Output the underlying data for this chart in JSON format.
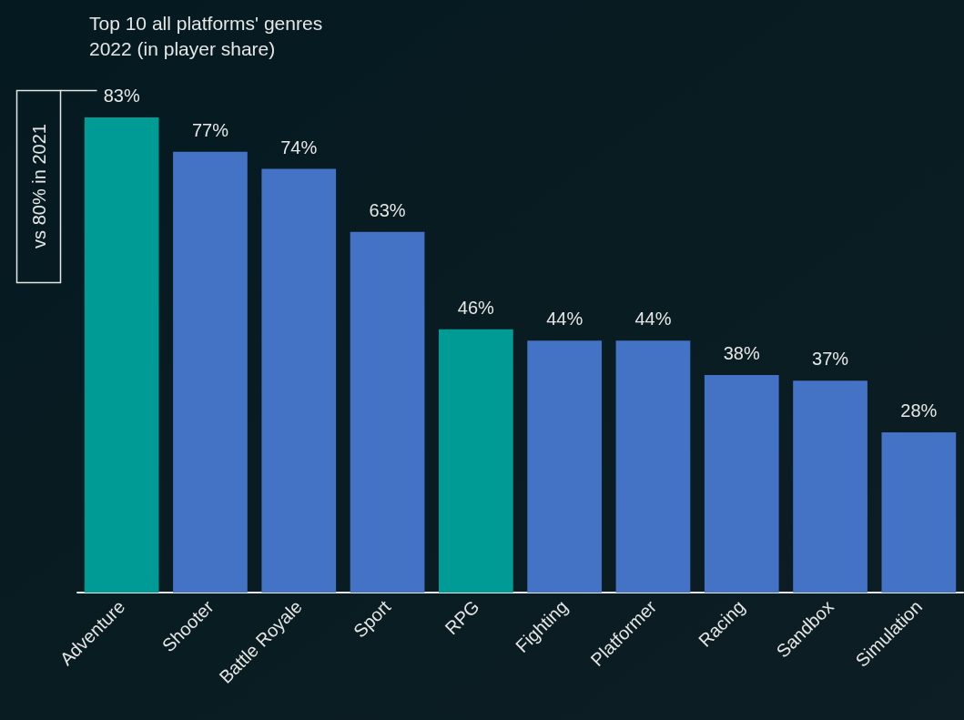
{
  "chart_data": {
    "type": "bar",
    "title": "Top 10 all platforms' genres",
    "subtitle": "2022 (in player share)",
    "categories": [
      "Adventure",
      "Shooter",
      "Battle Royale",
      "Sport",
      "RPG",
      "Fighting",
      "Platformer",
      "Racing",
      "Sandbox",
      "Simulation"
    ],
    "values": [
      83,
      77,
      74,
      63,
      46,
      44,
      44,
      38,
      37,
      28
    ],
    "colors": [
      "#009b94",
      "#4472c4",
      "#4472c4",
      "#4472c4",
      "#009b94",
      "#4472c4",
      "#4472c4",
      "#4472c4",
      "#4472c4",
      "#4472c4"
    ],
    "value_labels": [
      "83%",
      "77%",
      "74%",
      "63%",
      "46%",
      "44%",
      "44%",
      "38%",
      "37%",
      "28%"
    ],
    "annotations": [
      "vs 80% in 2021"
    ]
  }
}
